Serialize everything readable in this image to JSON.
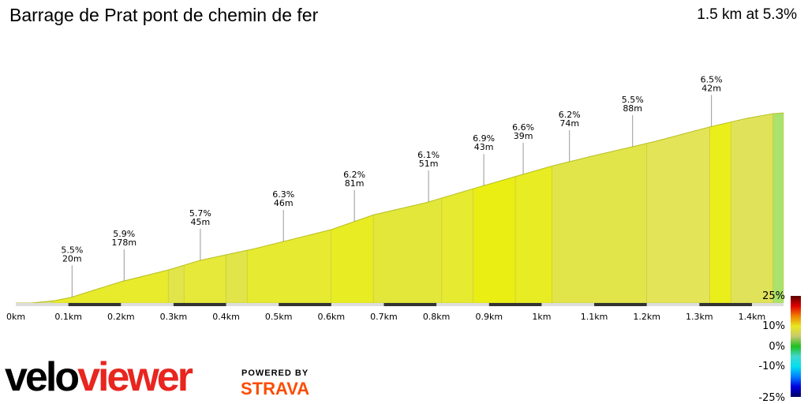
{
  "header": {
    "title": "Barrage de Prat pont de chemin de fer",
    "summary": "1.5 km at 5.3%"
  },
  "branding": {
    "logo_part1": "velo",
    "logo_part2": "viewer",
    "powered_by": "POWERED BY",
    "strava": "STRAVA"
  },
  "chart_data": {
    "type": "area",
    "xlim": [
      0,
      1.46
    ],
    "x_ticks": [
      "0km",
      "0.1km",
      "0.2km",
      "0.3km",
      "0.4km",
      "0.5km",
      "0.6km",
      "0.7km",
      "0.8km",
      "0.9km",
      "1km",
      "1.1km",
      "1.2km",
      "1.3km",
      "1.4km"
    ],
    "profile": [
      [
        0,
        0
      ],
      [
        0.03,
        0
      ],
      [
        0.075,
        1
      ],
      [
        0.105,
        2.3
      ],
      [
        0.2,
        8.7
      ],
      [
        0.29,
        13.5
      ],
      [
        0.35,
        17.4
      ],
      [
        0.45,
        22
      ],
      [
        0.6,
        30
      ],
      [
        0.68,
        36
      ],
      [
        0.78,
        41
      ],
      [
        0.89,
        48
      ],
      [
        1.02,
        56
      ],
      [
        1.095,
        60
      ],
      [
        1.215,
        66
      ],
      [
        1.32,
        72
      ],
      [
        1.39,
        75.5
      ],
      [
        1.44,
        77.4
      ],
      [
        1.46,
        77.7
      ]
    ],
    "segments": [
      {
        "from": 0,
        "to": 0.07,
        "color": "#d8e27a"
      },
      {
        "from": 0.07,
        "to": 0.29,
        "color": "#e8ea2c"
      },
      {
        "from": 0.29,
        "to": 0.32,
        "color": "#e1e54a"
      },
      {
        "from": 0.32,
        "to": 0.4,
        "color": "#e6e93a"
      },
      {
        "from": 0.4,
        "to": 0.44,
        "color": "#e1e54a"
      },
      {
        "from": 0.44,
        "to": 0.6,
        "color": "#e6ea30"
      },
      {
        "from": 0.6,
        "to": 0.68,
        "color": "#e8ec22"
      },
      {
        "from": 0.68,
        "to": 0.81,
        "color": "#e3e73a"
      },
      {
        "from": 0.81,
        "to": 0.87,
        "color": "#e6ea30"
      },
      {
        "from": 0.87,
        "to": 0.95,
        "color": "#eaee12"
      },
      {
        "from": 0.95,
        "to": 1.02,
        "color": "#e8ec22"
      },
      {
        "from": 1.02,
        "to": 1.2,
        "color": "#e1e54a"
      },
      {
        "from": 1.2,
        "to": 1.32,
        "color": "#e3e457"
      },
      {
        "from": 1.32,
        "to": 1.36,
        "color": "#eaee1a"
      },
      {
        "from": 1.36,
        "to": 1.44,
        "color": "#e0e35a"
      },
      {
        "from": 1.44,
        "to": 1.46,
        "color": "#a9e26c"
      }
    ],
    "annotations": [
      {
        "x": 0.107,
        "grade": "5.5%",
        "length": "20m"
      },
      {
        "x": 0.206,
        "grade": "5.9%",
        "length": "178m"
      },
      {
        "x": 0.351,
        "grade": "5.7%",
        "length": "45m"
      },
      {
        "x": 0.509,
        "grade": "6.3%",
        "length": "46m"
      },
      {
        "x": 0.644,
        "grade": "6.2%",
        "length": "81m"
      },
      {
        "x": 0.785,
        "grade": "6.1%",
        "length": "51m"
      },
      {
        "x": 0.89,
        "grade": "6.9%",
        "length": "43m"
      },
      {
        "x": 0.965,
        "grade": "6.6%",
        "length": "39m"
      },
      {
        "x": 1.053,
        "grade": "6.2%",
        "length": "74m"
      },
      {
        "x": 1.173,
        "grade": "5.5%",
        "length": "88m"
      },
      {
        "x": 1.323,
        "grade": "6.5%",
        "length": "42m"
      }
    ],
    "legend": {
      "labels": [
        "25%",
        "10%",
        "0%",
        "-10%",
        "-25%"
      ],
      "colors": [
        "#5a0000",
        "#e00000",
        "#f08000",
        "#e8e820",
        "#c8c870",
        "#20c020",
        "#40d8d0",
        "#00e0f0",
        "#0080ff",
        "#0000e0",
        "#000060"
      ]
    }
  }
}
